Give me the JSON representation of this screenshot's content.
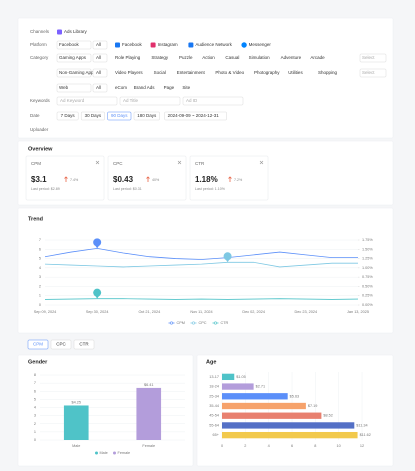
{
  "filters": {
    "channel_label": "Channels",
    "channel": "Ads Library",
    "platform_label": "Platform",
    "platform_select": "Facebook",
    "platform_all": "All",
    "platforms": [
      "Facebook",
      "Instagram",
      "Audience Network",
      "Messenger"
    ],
    "category_label": "Category",
    "category_rows": [
      {
        "select": "Gaming Apps",
        "all": "All",
        "options": [
          "Role Playing",
          "Strategy",
          "Puzzle",
          "Action",
          "Casual",
          "Simulation",
          "Adventure",
          "Arcade"
        ],
        "more": "Select"
      },
      {
        "select": "Non-Gaming Apps",
        "all": "All",
        "options": [
          "Video Players",
          "Social",
          "Entertainment",
          "Photo & Video",
          "Photography",
          "Utilities",
          "Shopping"
        ],
        "more": "Select"
      },
      {
        "select": "Web",
        "all": "All",
        "options": [
          "eCom",
          "Brand Ads",
          "Page",
          "Site"
        ]
      }
    ],
    "keyword_label": "Keywords",
    "keywords": [
      "Ad Keyword",
      "Ad Title",
      "Ad ID"
    ],
    "date_label": "Date",
    "dates": [
      {
        "label": "7 Days"
      },
      {
        "label": "30 Days"
      },
      {
        "label": "90 Days",
        "selected": true
      },
      {
        "label": "180 Days"
      }
    ],
    "date_range": "2024-09-09 ~ 2024-12-31",
    "uploader_label": "Uploader"
  },
  "overview": {
    "title": "Overview",
    "cards": [
      {
        "name": "CPM",
        "value": "$3.1",
        "change": "7.4%",
        "previous": "Last period: $2.89"
      },
      {
        "name": "CPC",
        "value": "$0.43",
        "change": "40%",
        "previous": "Last period: $0.31"
      },
      {
        "name": "CTR",
        "value": "1.18%",
        "change": "7.2%",
        "previous": "Last period: 1.10%"
      }
    ]
  },
  "tabs": [
    {
      "label": "CPM",
      "selected": true
    },
    {
      "label": "CPC"
    },
    {
      "label": "CTR"
    }
  ],
  "chart_data": [
    {
      "type": "line",
      "title": "Trend",
      "categories": [
        "Sep 09, 2024",
        null,
        "Sep 30, 2024",
        null,
        "Oct 21, 2024",
        null,
        "Nov 11, 2024",
        null,
        "Dec 02, 2024",
        null,
        "Dec 23, 2024",
        null,
        "Jan 13, 2025"
      ],
      "series": [
        {
          "name": "CPM",
          "color": "#5b8ff9",
          "values": [
            5.2,
            5.7,
            6.1,
            5.6,
            5.2,
            5.0,
            4.9,
            5.1,
            5.4,
            5.7,
            5.4,
            5.1,
            5.1
          ]
        },
        {
          "name": "CPC",
          "color": "#7ec8e3",
          "values": [
            4.4,
            4.3,
            4.2,
            4.1,
            4.2,
            4.3,
            4.4,
            4.6,
            4.6,
            4.1,
            4.3,
            4.5,
            4.5
          ]
        },
        {
          "name": "CTR",
          "color": "#4fc3c8",
          "axis": "y2",
          "values": [
            0.15,
            0.16,
            0.17,
            0.17,
            0.16,
            0.15,
            0.16,
            0.15,
            0.16,
            0.17,
            0.16,
            0.15,
            0.16
          ]
        }
      ],
      "ylim": [
        0,
        7
      ],
      "yticks": [
        0,
        1,
        2,
        3,
        4,
        5,
        6,
        7
      ],
      "y2lim": [
        0,
        1.75
      ],
      "y2ticks": [
        {
          "value": 0,
          "label": "0.00%"
        },
        {
          "value": 0.25,
          "label": "0.25%"
        },
        {
          "value": 0.5,
          "label": "0.50%"
        },
        {
          "value": 0.75,
          "label": "0.75%"
        },
        {
          "value": 1,
          "label": "1.00%"
        },
        {
          "value": 1.25,
          "label": "1.25%"
        },
        {
          "value": 1.5,
          "label": "1.50%"
        },
        {
          "value": 1.75,
          "label": "1.75%"
        }
      ],
      "grid": true,
      "legend": "bottom"
    },
    {
      "type": "bar",
      "title": "Gender",
      "categories": [
        "Male",
        "Female"
      ],
      "values": [
        4.25,
        6.41
      ],
      "value_labels": [
        "$4.25",
        "$6.41"
      ],
      "colors": [
        "#4fc3c8",
        "#b39ddb"
      ],
      "ylim": [
        0,
        8
      ],
      "yticks": [
        0,
        1,
        2,
        3,
        4,
        5,
        6,
        7,
        8
      ],
      "grid": true,
      "legend": "bottom"
    },
    {
      "type": "bar",
      "orientation": "horizontal",
      "title": "Age",
      "categories": [
        "13-17",
        "18-24",
        "25-34",
        "35-44",
        "45-54",
        "55-64",
        "65+"
      ],
      "values": [
        1.05,
        2.71,
        5.63,
        7.19,
        8.52,
        11.34,
        11.62
      ],
      "value_labels": [
        "$1.05",
        "$2.71",
        "$5.63",
        "$7.19",
        "$8.52",
        "$11.34",
        "$11.62"
      ],
      "colors": [
        "#4fc3c8",
        "#b39ddb",
        "#5b8ff9",
        "#f6a26b",
        "#e8806f",
        "#5470c6",
        "#f2c94c"
      ],
      "xlim": [
        0,
        12
      ],
      "xticks": [
        0,
        2,
        4,
        6,
        8,
        10,
        12
      ],
      "grid": true
    }
  ]
}
